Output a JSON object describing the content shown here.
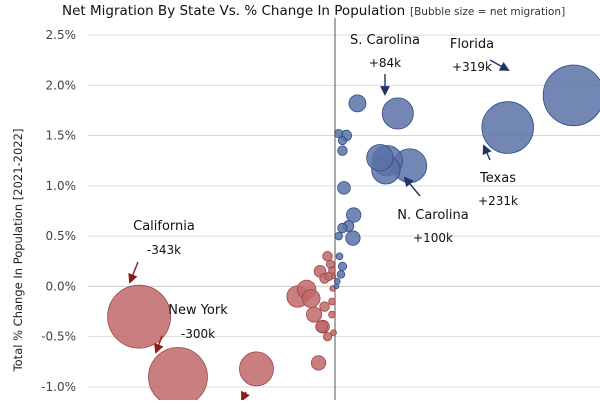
{
  "chart_data": {
    "type": "scatter",
    "title": "Net Migration By State Vs. % Change In Population",
    "subtitle": "[Bubble size = net migration]",
    "xlabel": "",
    "ylabel": "Total % Change In Population [2021-2022]",
    "xlim": [
      -325,
      325
    ],
    "ylim": [
      -1.05,
      2.55
    ],
    "yticks": [
      "2.5%",
      "2.0%",
      "1.5%",
      "1.0%",
      "0.5%",
      "0.0%",
      "-0.5%",
      "-1.0%"
    ],
    "ytick_values": [
      2.5,
      2.0,
      1.5,
      1.0,
      0.5,
      0.0,
      -0.5,
      -1.0
    ],
    "grid": "horizontal",
    "colors": {
      "gain": "#5a72a8",
      "loss": "#c0686a",
      "annotation_gain": "#1e3366",
      "annotation_loss": "#8b1a1a",
      "grid": "#d0d0d0",
      "axis": "#555555"
    },
    "points": [
      {
        "label": "Florida",
        "x": 319,
        "y": 1.9,
        "size": 319
      },
      {
        "label": "Texas",
        "x": 231,
        "y": 1.58,
        "size": 231
      },
      {
        "label": "S. Carolina",
        "x": 84,
        "y": 1.72,
        "size": 84
      },
      {
        "label": "N. Carolina",
        "x": 100,
        "y": 1.2,
        "size": 100
      },
      {
        "label": "",
        "x": 70,
        "y": 1.25,
        "size": 80
      },
      {
        "label": "",
        "x": 60,
        "y": 1.28,
        "size": 60
      },
      {
        "label": "",
        "x": 68,
        "y": 1.16,
        "size": 70
      },
      {
        "label": "",
        "x": 30,
        "y": 1.82,
        "size": 25
      },
      {
        "label": "",
        "x": 5,
        "y": 1.52,
        "size": 6
      },
      {
        "label": "",
        "x": 15,
        "y": 1.5,
        "size": 10
      },
      {
        "label": "",
        "x": 10,
        "y": 1.45,
        "size": 6
      },
      {
        "label": "",
        "x": 10,
        "y": 1.35,
        "size": 8
      },
      {
        "label": "",
        "x": 12,
        "y": 0.98,
        "size": 14
      },
      {
        "label": "",
        "x": 25,
        "y": 0.71,
        "size": 18
      },
      {
        "label": "",
        "x": 18,
        "y": 0.6,
        "size": 10
      },
      {
        "label": "",
        "x": 24,
        "y": 0.48,
        "size": 18
      },
      {
        "label": "",
        "x": 10,
        "y": 0.58,
        "size": 8
      },
      {
        "label": "",
        "x": 5,
        "y": 0.5,
        "size": 5
      },
      {
        "label": "",
        "x": 6,
        "y": 0.3,
        "size": 4
      },
      {
        "label": "",
        "x": 10,
        "y": 0.2,
        "size": 6
      },
      {
        "label": "",
        "x": 8,
        "y": 0.12,
        "size": 5
      },
      {
        "label": "",
        "x": 3,
        "y": 0.05,
        "size": 3
      },
      {
        "label": "",
        "x": 2,
        "y": 0.0,
        "size": 2
      },
      {
        "label": "",
        "x": -2,
        "y": 0.1,
        "size": 2
      },
      {
        "label": "",
        "x": -10,
        "y": 0.3,
        "size": 8
      },
      {
        "label": "",
        "x": -6,
        "y": 0.22,
        "size": 6
      },
      {
        "label": "",
        "x": -4,
        "y": 0.16,
        "size": 4
      },
      {
        "label": "",
        "x": -8,
        "y": 0.1,
        "size": 6
      },
      {
        "label": "",
        "x": -20,
        "y": 0.15,
        "size": 12
      },
      {
        "label": "",
        "x": -14,
        "y": 0.08,
        "size": 8
      },
      {
        "label": "",
        "x": -3,
        "y": -0.02,
        "size": 3
      },
      {
        "label": "",
        "x": -4,
        "y": -0.15,
        "size": 4
      },
      {
        "label": "",
        "x": -14,
        "y": -0.2,
        "size": 8
      },
      {
        "label": "",
        "x": -18,
        "y": -0.4,
        "size": 12
      },
      {
        "label": "",
        "x": -4,
        "y": -0.28,
        "size": 4
      },
      {
        "label": "",
        "x": -2,
        "y": -0.46,
        "size": 3
      },
      {
        "label": "",
        "x": -10,
        "y": -0.5,
        "size": 6
      },
      {
        "label": "",
        "x": -38,
        "y": -0.03,
        "size": 30
      },
      {
        "label": "",
        "x": -32,
        "y": -0.12,
        "size": 28
      },
      {
        "label": "",
        "x": -28,
        "y": -0.28,
        "size": 20
      },
      {
        "label": "",
        "x": -16,
        "y": -0.4,
        "size": 14
      },
      {
        "label": "",
        "x": -50,
        "y": -0.1,
        "size": 40
      },
      {
        "label": "",
        "x": -22,
        "y": -0.76,
        "size": 18
      },
      {
        "label": "",
        "x": -105,
        "y": -0.82,
        "size": 100
      },
      {
        "label": "New York",
        "x": -210,
        "y": -0.9,
        "size": 300
      },
      {
        "label": "California",
        "x": -262,
        "y": -0.3,
        "size": 343
      }
    ],
    "annotations": [
      {
        "name": "Florida",
        "value": "+319k"
      },
      {
        "name": "Texas",
        "value": "+231k"
      },
      {
        "name": "S. Carolina",
        "value": "+84k"
      },
      {
        "name": "N. Carolina",
        "value": "+100k"
      },
      {
        "name": "California",
        "value": "-343k"
      },
      {
        "name": "New York",
        "value": "-300k"
      }
    ]
  }
}
